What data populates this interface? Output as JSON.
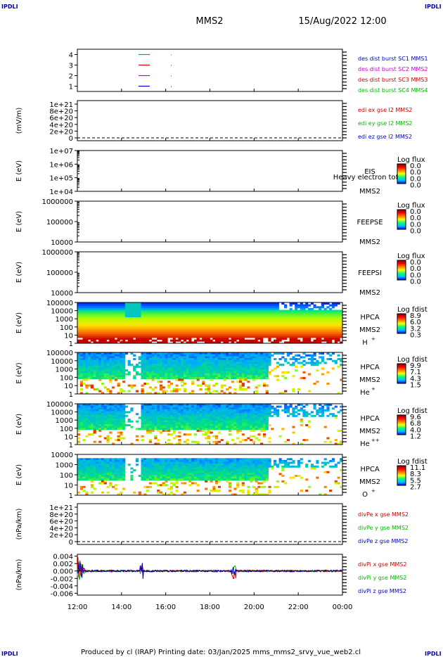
{
  "corner_labels": {
    "tl": "IPDLI",
    "tr": "IPDLI",
    "bl": "IPDLI",
    "br": "IPDLI"
  },
  "header": {
    "title": "MMS2",
    "date": "15/Aug/2022 12:00"
  },
  "footer": {
    "text": "Produced by cl (IRAP)   Printing date: 03/Jan/2025   mms_mms2_srvy_vue_web2.cl"
  },
  "x_axis": {
    "ticks": [
      "12:00",
      "14:00",
      "16:00",
      "18:00",
      "20:00",
      "22:00",
      "00:00"
    ]
  },
  "colors": {
    "blue": "#0000cc",
    "magenta": "#cc00cc",
    "red": "#cc0000",
    "green": "#00bb00"
  },
  "chart_data": [
    {
      "type": "line",
      "panel": "des-dist-burst",
      "yticks": [
        "1",
        "2",
        "3",
        "4"
      ],
      "ylim": [
        0.5,
        4.5
      ],
      "legend": [
        {
          "text": "des dist burst SC1 MMS1",
          "color": "#0000cc"
        },
        {
          "text": "des dist burst SC2 MMS2",
          "color": "#cc00cc"
        },
        {
          "text": "des dist burst SC3 MMS3",
          "color": "#cc0000"
        },
        {
          "text": "des dist burst SC4 MMS4",
          "color": "#00bb00"
        }
      ]
    },
    {
      "type": "line",
      "panel": "edi-e-gse",
      "ylabel": "(mV/m)",
      "yticks": [
        "1e+21",
        "8e+20",
        "6e+20",
        "4e+20",
        "2e+20",
        "0"
      ],
      "legend": [
        {
          "text": "edi ex gse l2 MMS2",
          "color": "#cc0000"
        },
        {
          "text": "edi ey gse l2 MMS2",
          "color": "#00bb00"
        },
        {
          "text": "edi ez gse l2 MMS2",
          "color": "#0000cc"
        }
      ]
    },
    {
      "type": "heatmap",
      "panel": "eis",
      "ylabel": "E (eV)",
      "yticks": [
        "1e+07",
        "1e+06",
        "1e+05",
        "1e+04"
      ],
      "labels": [
        "EIS",
        "MMS2"
      ],
      "overlay": "Heavy electron tof",
      "colorbar": {
        "title": "Log flux",
        "values": [
          "0.0",
          "0.0",
          "0.0",
          "0.0"
        ]
      }
    },
    {
      "type": "heatmap",
      "panel": "feepse",
      "ylabel": "E (eV)",
      "yticks": [
        "1000000",
        "100000",
        "10000"
      ],
      "labels": [
        "FEEPSE",
        "MMS2"
      ],
      "colorbar": {
        "title": "Log flux",
        "values": [
          "0.0",
          "0.0",
          "0.0",
          "0.0"
        ]
      }
    },
    {
      "type": "heatmap",
      "panel": "feepsi",
      "ylabel": "E (eV)",
      "yticks": [
        "1000000",
        "100000",
        "10000"
      ],
      "labels": [
        "FEEPSI",
        "MMS2"
      ],
      "colorbar": {
        "title": "Log flux",
        "values": [
          "0.0",
          "0.0",
          "0.0",
          "0.0"
        ]
      }
    },
    {
      "type": "heatmap",
      "panel": "hpca-h",
      "ylabel": "E (eV)",
      "yticks": [
        "100000",
        "10000",
        "1000",
        "100",
        "10",
        "1"
      ],
      "labels": [
        "HPCA",
        "MMS2",
        "H",
        "+"
      ],
      "colorbar": {
        "title": "Log fdist",
        "values": [
          "8.9",
          "6.0",
          "3.2",
          "0.3"
        ]
      }
    },
    {
      "type": "heatmap",
      "panel": "hpca-he",
      "ylabel": "E (eV)",
      "yticks": [
        "100000",
        "10000",
        "1000",
        "100",
        "10",
        "1"
      ],
      "labels": [
        "HPCA",
        "MMS2",
        "He",
        "+"
      ],
      "colorbar": {
        "title": "Log fdist",
        "values": [
          "9.9",
          "7.1",
          "4.3",
          "1.5"
        ]
      }
    },
    {
      "type": "heatmap",
      "panel": "hpca-hepp",
      "ylabel": "E (eV)",
      "yticks": [
        "100000",
        "10000",
        "1000",
        "100",
        "10",
        "1"
      ],
      "labels": [
        "HPCA",
        "MMS2",
        "He",
        "++"
      ],
      "colorbar": {
        "title": "Log fdist",
        "values": [
          "9.6",
          "6.8",
          "4.0",
          "1.2"
        ]
      }
    },
    {
      "type": "heatmap",
      "panel": "hpca-o",
      "ylabel": "E (eV)",
      "yticks": [
        "10000",
        "1000",
        "100",
        "10",
        "1"
      ],
      "labels": [
        "HPCA",
        "MMS2",
        "O",
        "+"
      ],
      "colorbar": {
        "title": "Log fdist",
        "values": [
          "11.1",
          "8.3",
          "5.5",
          "2.7"
        ]
      }
    },
    {
      "type": "line",
      "panel": "divpe",
      "ylabel": "(nPa/km)",
      "yticks": [
        "1e+21",
        "8e+20",
        "6e+20",
        "4e+20",
        "2e+20",
        "0"
      ],
      "legend": [
        {
          "text": "divPe x gse MMS2",
          "color": "#cc0000"
        },
        {
          "text": "divPe y gse MMS2",
          "color": "#00bb00"
        },
        {
          "text": "divPe z gse MMS2",
          "color": "#0000cc"
        }
      ]
    },
    {
      "type": "line",
      "panel": "divpi",
      "ylabel": "(nPa/km)",
      "yticks": [
        "0.004",
        "0.002",
        "0.000",
        "-0.002",
        "-0.004",
        "-0.006"
      ],
      "ylim": [
        -0.0065,
        0.0045
      ],
      "legend": [
        {
          "text": "divPi x gse MMS2",
          "color": "#cc0000"
        },
        {
          "text": "divPi y gse MMS2",
          "color": "#00bb00"
        },
        {
          "text": "divPi z gse MMS2",
          "color": "#0000cc"
        }
      ]
    }
  ]
}
